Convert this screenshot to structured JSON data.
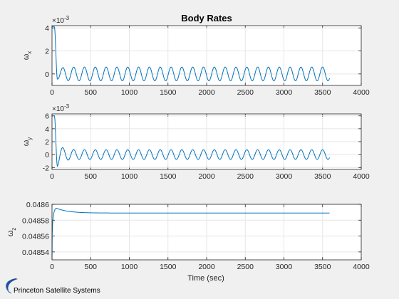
{
  "figure_title": "Body Rates",
  "xlabel": "Time (sec)",
  "logo_text": "Princeton Satellite Systems",
  "colors": {
    "line": "#0072bd",
    "axes_bg": "#ffffff",
    "figure_bg": "#f0f0f0",
    "grid": "#e6e6e6",
    "text": "#262626",
    "logo": "#1f4e9a"
  },
  "chart_data": [
    {
      "type": "line",
      "ylabel_base": "ω",
      "ylabel_sub": "x",
      "exponent": "×10",
      "exponent_power": "-3",
      "xlim": [
        0,
        4000
      ],
      "ylim": [
        -1,
        4.2
      ],
      "xticks": [
        "0",
        "500",
        "1000",
        "1500",
        "2000",
        "2500",
        "3000",
        "3500",
        "4000"
      ],
      "yticks": [
        "0",
        "2",
        "4"
      ],
      "ytick_values": [
        0,
        2,
        4
      ],
      "grid": true,
      "signal": {
        "t_end": 3590,
        "initial": 4.1,
        "spike_end_time": 30,
        "first_min": -0.45,
        "first_min_time": 70,
        "mean": 0.0,
        "amplitude": 0.6,
        "period": 140,
        "cycles": 25
      }
    },
    {
      "type": "line",
      "ylabel_base": "ω",
      "ylabel_sub": "y",
      "exponent": "×10",
      "exponent_power": "-3",
      "xlim": [
        0,
        4000
      ],
      "ylim": [
        -2.3,
        6.3
      ],
      "xticks": [
        "0",
        "500",
        "1000",
        "1500",
        "2000",
        "2500",
        "3000",
        "3500",
        "4000"
      ],
      "yticks": [
        "-2",
        "0",
        "2",
        "4",
        "6"
      ],
      "ytick_values": [
        -2,
        0,
        2,
        4,
        6
      ],
      "grid": true,
      "signal": {
        "t_end": 3590,
        "initial": 6.0,
        "spike_end_time": 30,
        "first_min": -1.8,
        "first_min_time": 70,
        "mean": 0.0,
        "amplitude": 0.75,
        "period": 140,
        "cycles": 25
      }
    },
    {
      "type": "line",
      "ylabel_base": "ω",
      "ylabel_sub": "z",
      "exponent": "",
      "exponent_power": "",
      "xlim": [
        0,
        4000
      ],
      "ylim": [
        0.04853,
        0.0486
      ],
      "xticks": [
        "0",
        "500",
        "1000",
        "1500",
        "2000",
        "2500",
        "3000",
        "3500",
        "4000"
      ],
      "yticks": [
        "0.04854",
        "0.04856",
        "0.04858",
        "0.0486"
      ],
      "ytick_values": [
        0.04854,
        0.04856,
        0.04858,
        0.0486
      ],
      "grid": true,
      "signal": {
        "t_end": 3590,
        "start": 0.04853,
        "peak": 0.048595,
        "peak_time": 60,
        "steady": 0.048589
      }
    }
  ]
}
